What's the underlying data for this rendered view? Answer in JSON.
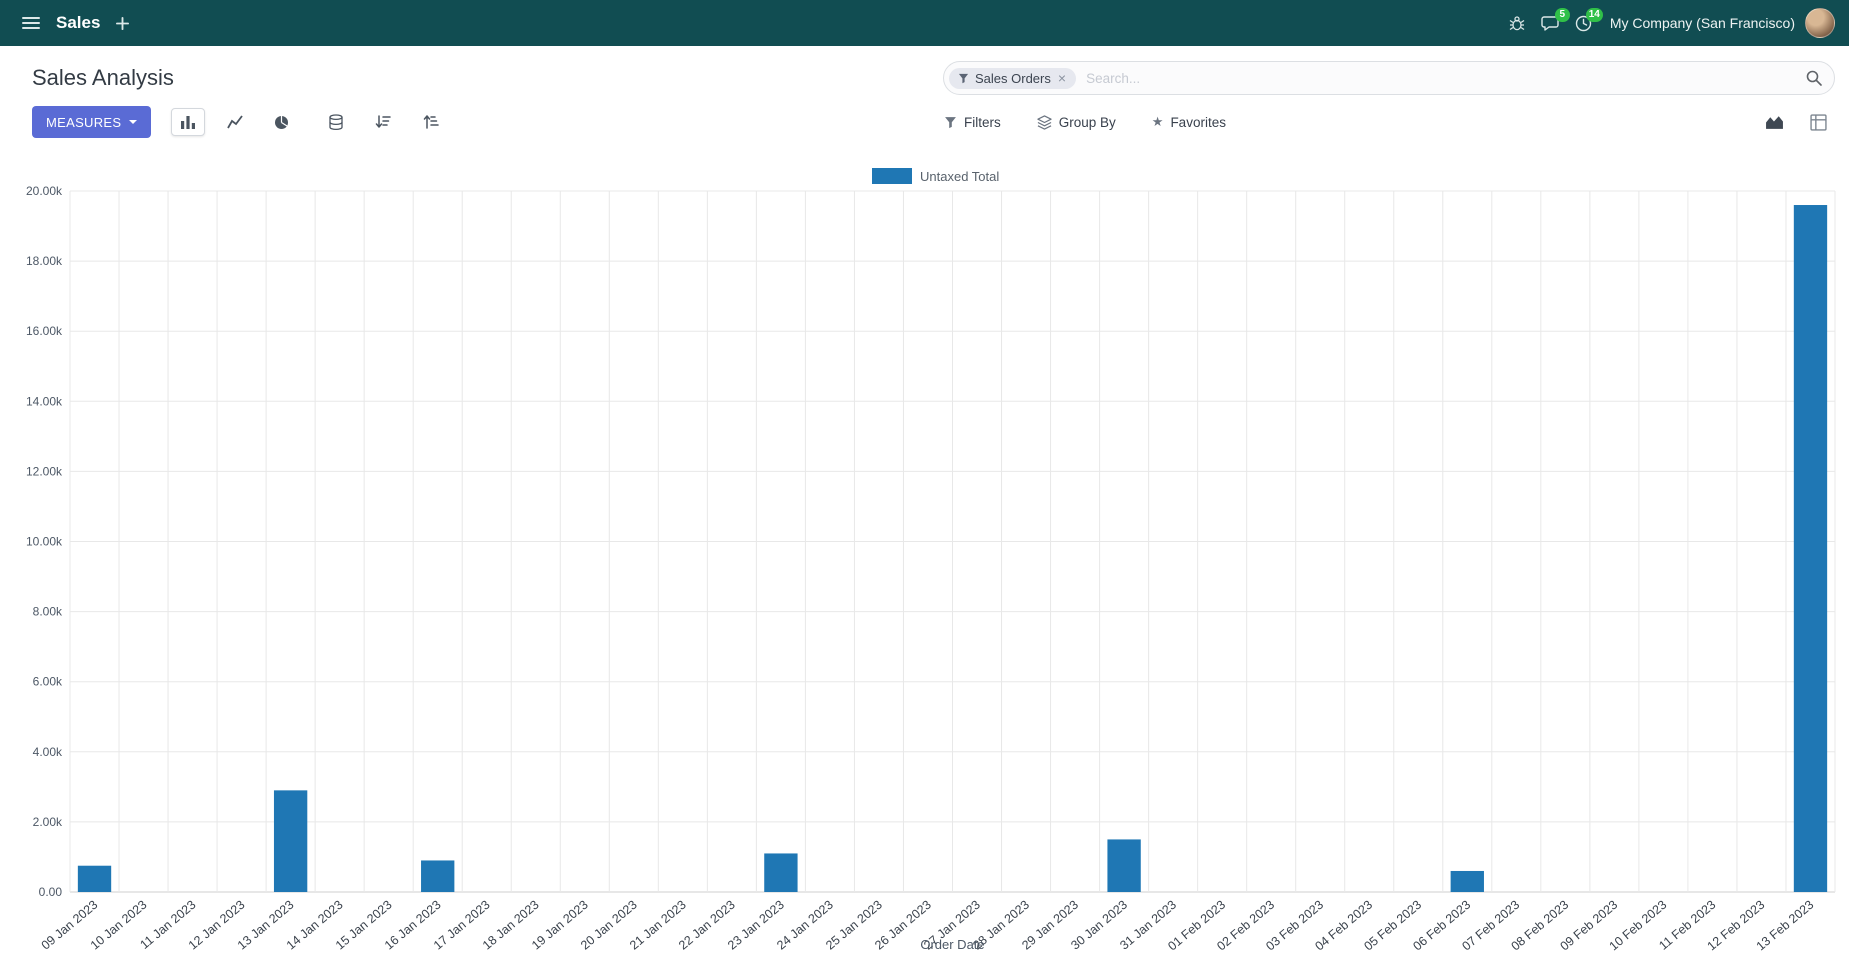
{
  "colors": {
    "navbar-bg": "#114D52",
    "primary": "#5A6BD5",
    "badge-green": "#30C048",
    "bar-blue": "#1F77B4"
  },
  "navbar": {
    "app_label": "Sales",
    "company_name": "My Company (San Francisco)",
    "badges": {
      "messages": "5",
      "activities": "14"
    }
  },
  "control_panel": {
    "title": "Sales Analysis",
    "measures_button": "MEASURES",
    "search": {
      "facet_label": "Sales Orders",
      "remove_facet": "×",
      "placeholder": "Search..."
    },
    "secondary_buttons": {
      "filters": "Filters",
      "group_by": "Group By",
      "favorites": "Favorites"
    }
  },
  "chart_data": {
    "type": "bar",
    "title": "",
    "legend": [
      "Untaxed Total"
    ],
    "legend_position": "top-center",
    "xlabel": "Order Date",
    "ylabel": "",
    "ylim": [
      0,
      20000
    ],
    "ytick_step": 2000,
    "grid": true,
    "bar_color": "#1F77B4",
    "categories": [
      "09 Jan 2023",
      "10 Jan 2023",
      "11 Jan 2023",
      "12 Jan 2023",
      "13 Jan 2023",
      "14 Jan 2023",
      "15 Jan 2023",
      "16 Jan 2023",
      "17 Jan 2023",
      "18 Jan 2023",
      "19 Jan 2023",
      "20 Jan 2023",
      "21 Jan 2023",
      "22 Jan 2023",
      "23 Jan 2023",
      "24 Jan 2023",
      "25 Jan 2023",
      "26 Jan 2023",
      "27 Jan 2023",
      "28 Jan 2023",
      "29 Jan 2023",
      "30 Jan 2023",
      "31 Jan 2023",
      "01 Feb 2023",
      "02 Feb 2023",
      "03 Feb 2023",
      "04 Feb 2023",
      "05 Feb 2023",
      "06 Feb 2023",
      "07 Feb 2023",
      "08 Feb 2023",
      "09 Feb 2023",
      "10 Feb 2023",
      "11 Feb 2023",
      "12 Feb 2023",
      "13 Feb 2023"
    ],
    "values": [
      750,
      0,
      0,
      0,
      2900,
      0,
      0,
      900,
      0,
      0,
      0,
      0,
      0,
      0,
      1100,
      0,
      0,
      0,
      0,
      0,
      0,
      1500,
      0,
      0,
      0,
      0,
      0,
      0,
      600,
      0,
      0,
      0,
      0,
      0,
      0,
      19600
    ]
  }
}
